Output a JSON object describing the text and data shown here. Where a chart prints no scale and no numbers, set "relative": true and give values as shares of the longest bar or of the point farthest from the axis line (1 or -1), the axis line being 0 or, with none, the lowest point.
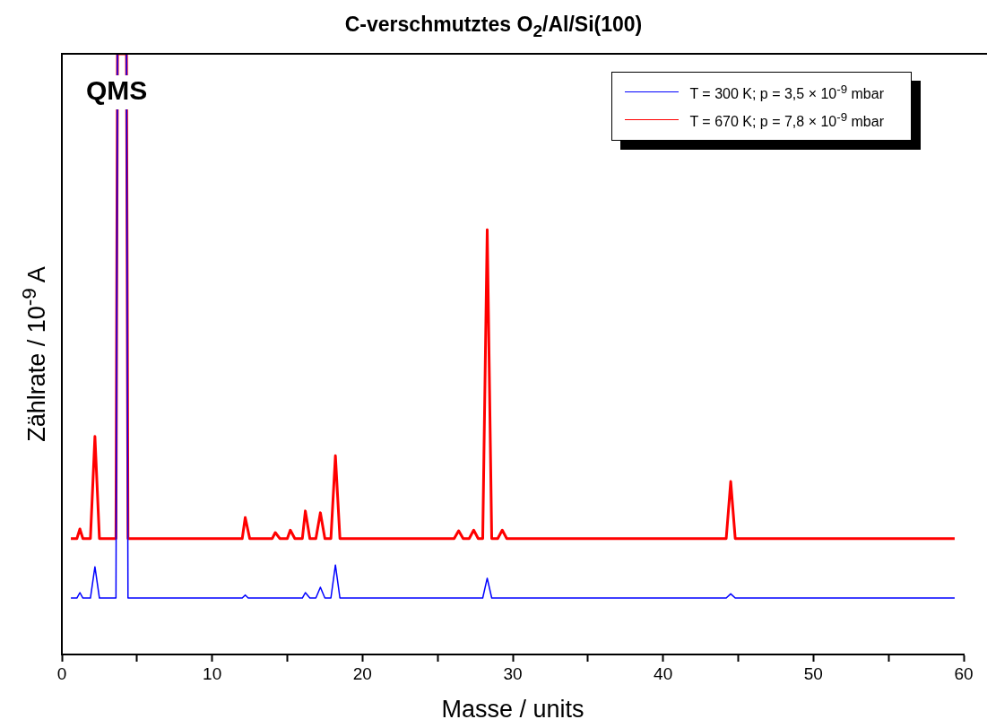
{
  "chart_data": {
    "type": "line",
    "title": "C-verschmutztes O$_{2}$/Al/Si(100)",
    "xlabel": "Masse / units",
    "ylabel": "Zählrate / 10$^{-9}$ A",
    "relative": true,
    "xlim": [
      0,
      60
    ],
    "xticks": [
      0,
      {
        "value": 5,
        "label": null
      },
      10,
      {
        "value": 15,
        "label": null
      },
      20,
      {
        "value": 25,
        "label": null
      },
      30,
      {
        "value": 35,
        "label": null
      },
      40,
      {
        "value": 45,
        "label": null
      },
      50,
      {
        "value": 55,
        "label": null
      },
      60
    ],
    "grid": false,
    "legend": "top right",
    "marker": "none",
    "line_style": "solid",
    "annotations": [
      "QMS"
    ],
    "series": [
      {
        "name": "T = 300 K; p = 3,5 × 10$^{-9}$ mbar",
        "color": "#0000ff",
        "x": [
          0.6,
          1.0,
          1.2,
          1.4,
          1.9,
          2.2,
          2.5,
          3.6,
          3.7,
          4.3,
          4.4,
          12.0,
          12.2,
          12.4,
          16.0,
          16.2,
          16.5,
          16.9,
          17.2,
          17.5,
          17.9,
          18.2,
          18.5,
          28.0,
          28.3,
          28.6,
          44.2,
          44.5,
          44.8,
          59.4
        ],
        "values": [
          0.094,
          0.094,
          0.103,
          0.094,
          0.094,
          0.146,
          0.094,
          0.094,
          1,
          1,
          0.094,
          0.094,
          0.099,
          0.094,
          0.094,
          0.103,
          0.094,
          0.094,
          0.112,
          0.094,
          0.094,
          0.149,
          0.094,
          0.094,
          0.127,
          0.094,
          0.094,
          0.101,
          0.094,
          0.094
        ]
      },
      {
        "name": "T = 670 K; p = 7,8 × 10$^{-9}$ mbar",
        "color": "#ff0000",
        "x": [
          0.6,
          1.0,
          1.2,
          1.4,
          1.9,
          2.2,
          2.5,
          3.6,
          3.7,
          4.3,
          4.4,
          12.0,
          12.2,
          12.5,
          14.0,
          14.2,
          14.5,
          15.0,
          15.2,
          15.5,
          16.0,
          16.2,
          16.5,
          16.9,
          17.2,
          17.5,
          17.9,
          18.2,
          18.5,
          26.1,
          26.4,
          26.7,
          27.1,
          27.4,
          27.7,
          28.0,
          28.3,
          28.6,
          29.0,
          29.3,
          29.6,
          44.2,
          44.5,
          44.8,
          59.4
        ],
        "values": [
          0.193,
          0.193,
          0.209,
          0.193,
          0.193,
          0.363,
          0.193,
          0.193,
          1,
          1,
          0.193,
          0.193,
          0.228,
          0.193,
          0.193,
          0.203,
          0.193,
          0.193,
          0.207,
          0.193,
          0.193,
          0.239,
          0.193,
          0.193,
          0.236,
          0.193,
          0.193,
          0.331,
          0.193,
          0.193,
          0.206,
          0.193,
          0.193,
          0.207,
          0.193,
          0.193,
          0.707,
          0.193,
          0.193,
          0.207,
          0.193,
          0.193,
          0.288,
          0.193,
          0.193
        ]
      }
    ]
  }
}
